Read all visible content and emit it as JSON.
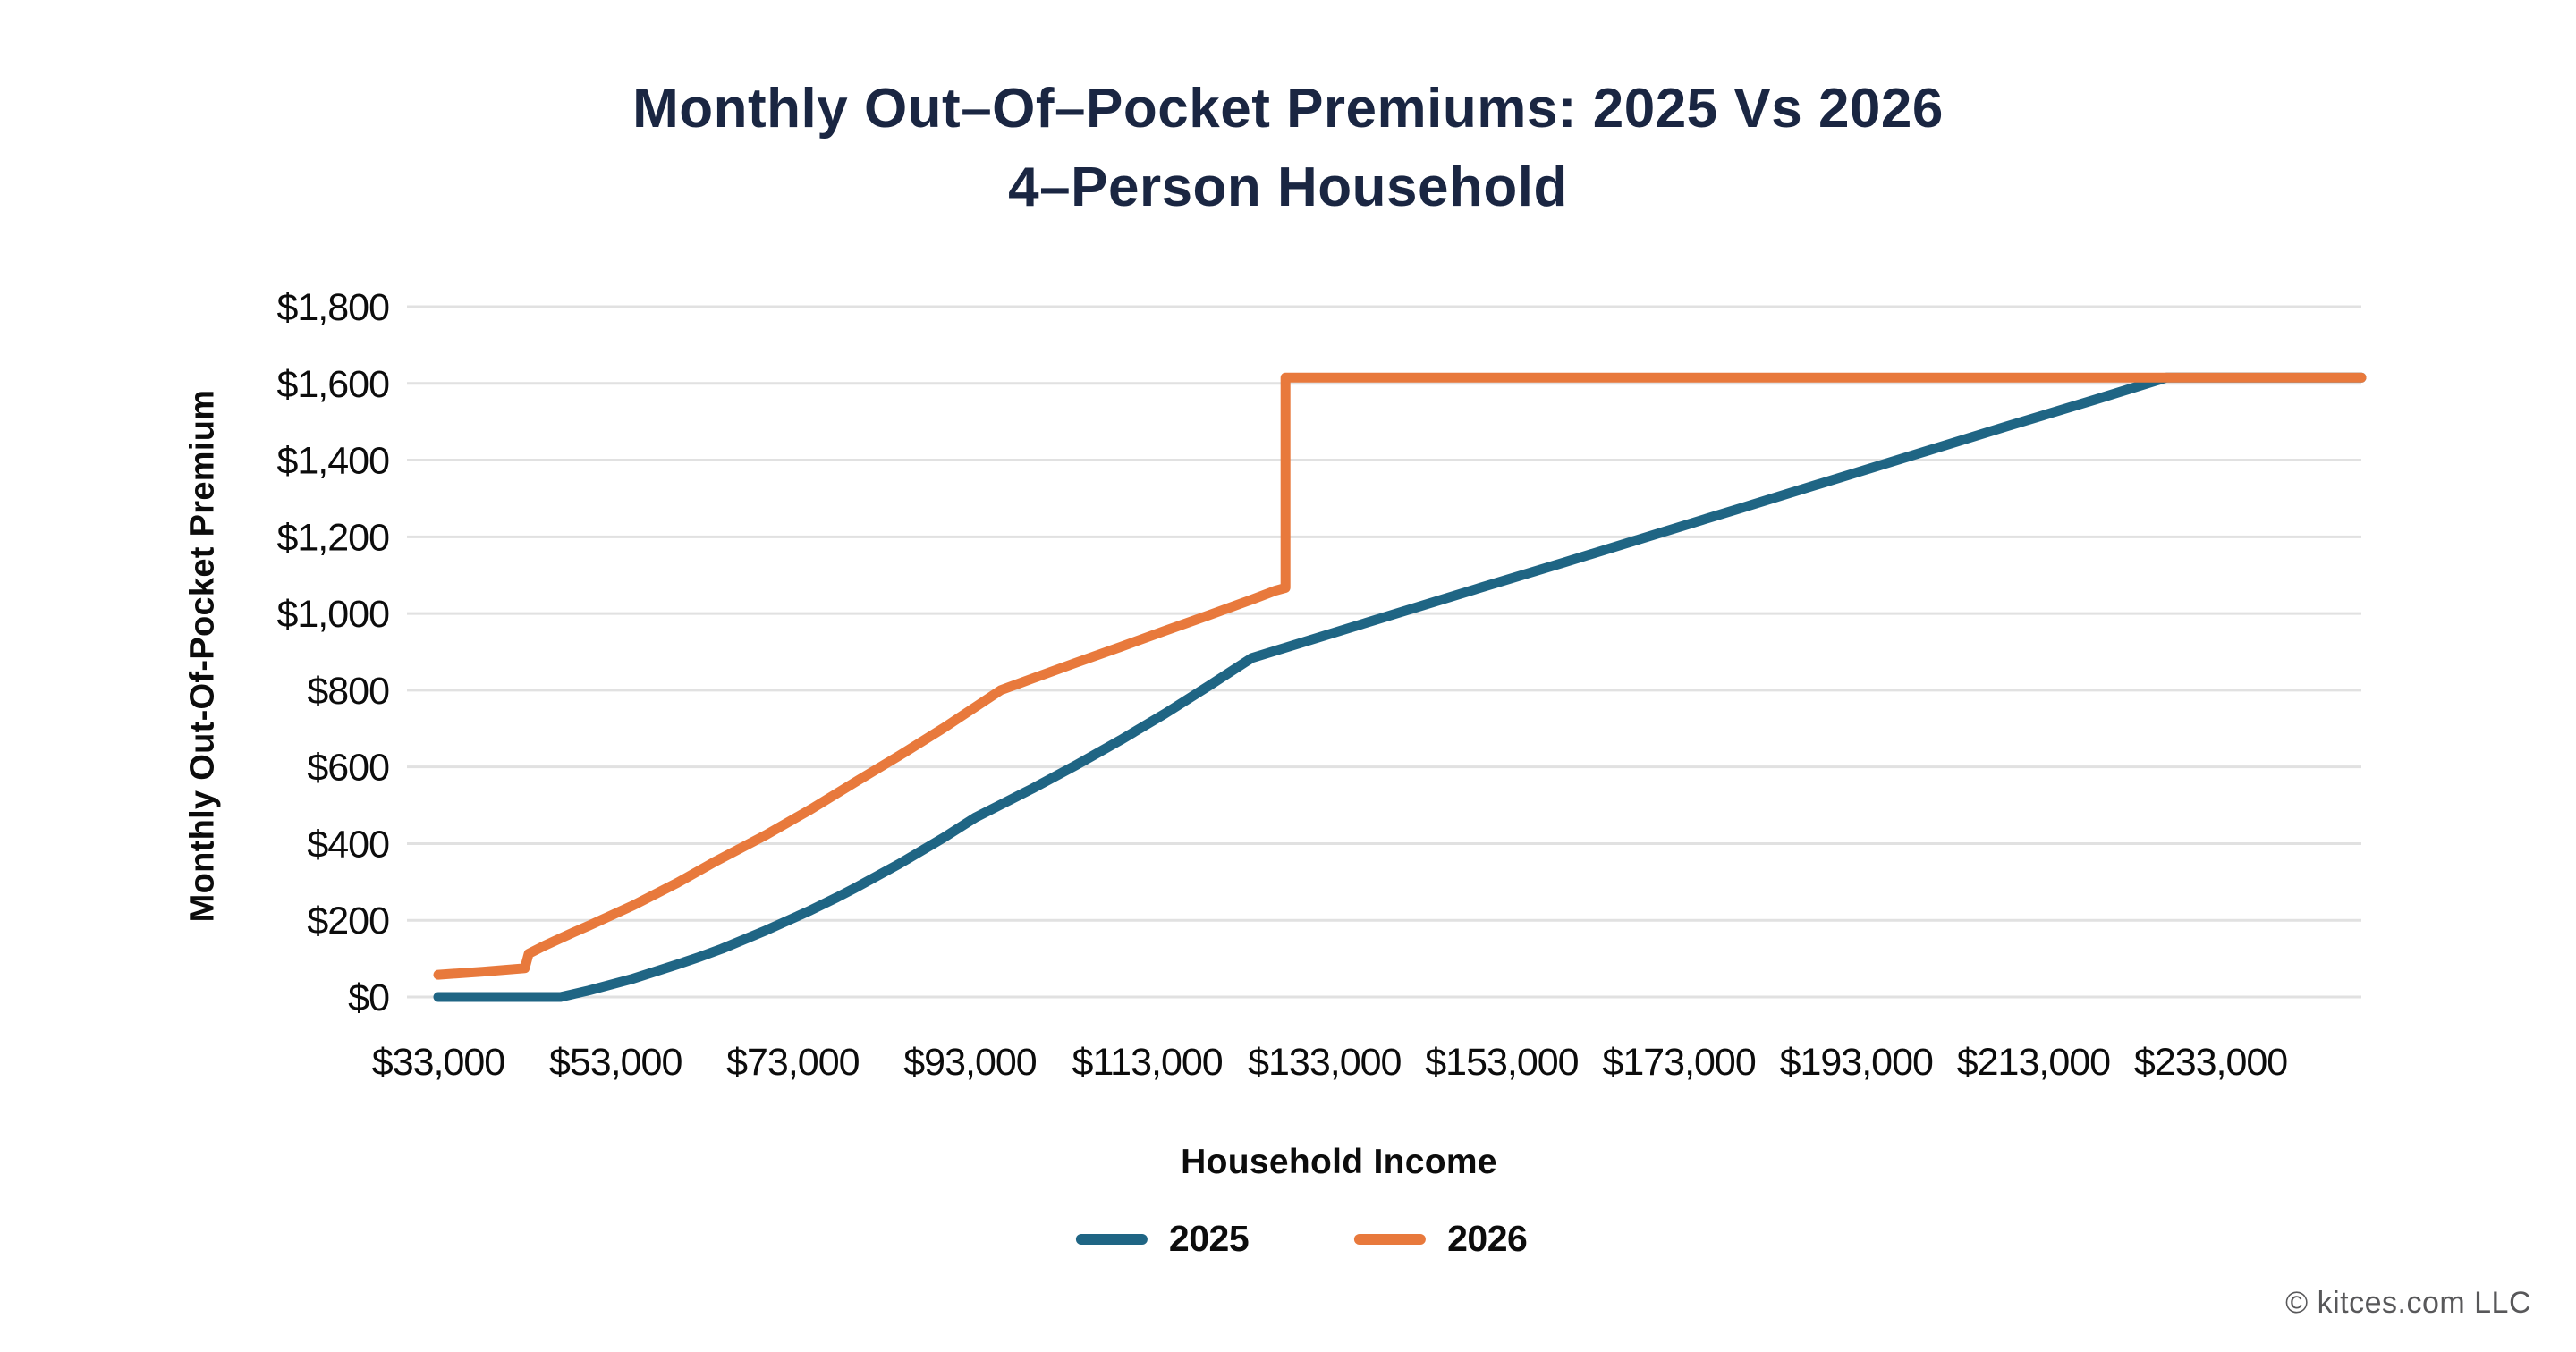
{
  "title": {
    "line1": "Monthly Out–Of–Pocket Premiums: 2025 Vs 2026",
    "line2": "4–Person Household"
  },
  "footer": {
    "copyright": "© kitces.com LLC"
  },
  "colors": {
    "title_navy": "#1a2642",
    "series_2025_blue": "#1F6584",
    "series_2026_orange": "#E8793C",
    "gridline_gray": "#e1e1e1",
    "footer_gray": "#58585a"
  },
  "chart_data": {
    "type": "line",
    "title": "Monthly Out–Of–Pocket Premiums: 2025 Vs 2026 — 4–Person Household",
    "xlabel": "Household Income",
    "ylabel": "Monthly Out-Of-Pocket Premium",
    "xlim": [
      33000,
      250000
    ],
    "ylim": [
      0,
      1800
    ],
    "grid": "horizontal",
    "legend_position": "bottom",
    "x_ticks": [
      33000,
      53000,
      73000,
      93000,
      113000,
      133000,
      153000,
      173000,
      193000,
      213000,
      233000
    ],
    "x_tick_labels": [
      "$33,000",
      "$53,000",
      "$73,000",
      "$93,000",
      "$113,000",
      "$133,000",
      "$153,000",
      "$173,000",
      "$193,000",
      "$213,000",
      "$233,000"
    ],
    "y_ticks": [
      0,
      200,
      400,
      600,
      800,
      1000,
      1200,
      1400,
      1600,
      1800
    ],
    "y_tick_labels": [
      "$0",
      "$200",
      "$400",
      "$600",
      "$800",
      "$1,000",
      "$1,200",
      "$1,400",
      "$1,600",
      "$1,800"
    ],
    "series": [
      {
        "name": "2025",
        "color": "#1F6584",
        "x": [
          33000,
          40000,
          46800,
          50000,
          55000,
          60000,
          62400,
          65000,
          70000,
          75000,
          78000,
          80000,
          85000,
          90000,
          93600,
          100000,
          105000,
          110000,
          115000,
          120000,
          124800,
          130000,
          140000,
          150000,
          160000,
          170000,
          180000,
          190000,
          200000,
          210000,
          220000,
          228000,
          240000,
          250000
        ],
        "y": [
          0,
          0,
          0,
          17,
          48,
          85,
          104,
          126,
          174,
          226,
          260,
          284,
          347,
          415,
          468,
          543,
          605,
          670,
          739,
          812,
          884,
          921,
          992,
          1063,
          1133,
          1204,
          1275,
          1346,
          1417,
          1488,
          1558,
          1615,
          1615,
          1615
        ]
      },
      {
        "name": "2026",
        "color": "#E8793C",
        "x": [
          33000,
          38000,
          42760,
          43200,
          45000,
          48225,
          50000,
          55000,
          60000,
          64300,
          70000,
          75000,
          80375,
          85000,
          90000,
          96450,
          100000,
          105000,
          110000,
          115000,
          120000,
          125000,
          127500,
          128600,
          128600,
          135000,
          150000,
          170000,
          190000,
          210000,
          230000,
          250000
        ],
        "y": [
          58,
          66,
          75,
          113,
          134,
          168,
          186,
          239,
          298,
          354,
          423,
          489,
          565,
          629,
          701,
          800,
          830,
          872,
          913,
          955,
          996,
          1038,
          1060,
          1067,
          1615,
          1615,
          1615,
          1615,
          1615,
          1615,
          1615,
          1615
        ]
      }
    ]
  }
}
